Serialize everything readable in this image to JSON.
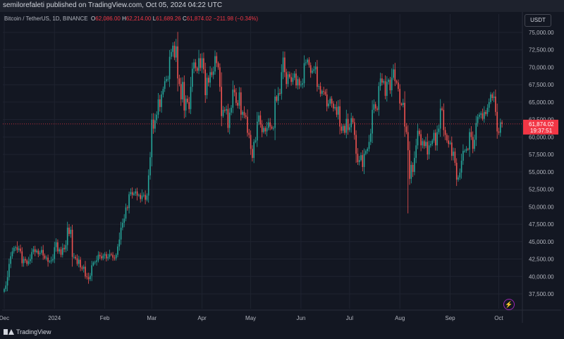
{
  "header": {
    "published_text": "semilorefaleti published on TradingView.com, Oct 05, 2024 04:22 UTC"
  },
  "symbol": {
    "name": "Bitcoin / TetherUS, 1D, BINANCE",
    "o_label": "O",
    "o_value": "62,086.00",
    "h_label": "H",
    "h_value": "62,214.00",
    "l_label": "L",
    "l_value": "61,689.26",
    "c_label": "C",
    "c_value": "61,874.02",
    "change": "−211.98 (−0.34%)"
  },
  "currency_button": "USDT",
  "brand": {
    "name": "TradingView"
  },
  "icons": {
    "lightning": "lightning-icon",
    "logo": "tradingview-logo-icon"
  },
  "colors": {
    "up": "#26a69a",
    "down": "#ef5350",
    "price_badge": "#f23645"
  },
  "price_badge": {
    "price": "61,874.02",
    "countdown": "19:37:51"
  },
  "chart_data": {
    "type": "candlestick",
    "ylim": [
      35800,
      76200
    ],
    "y_ticks": [
      37500,
      40000,
      42500,
      45000,
      47500,
      50000,
      52500,
      55000,
      57500,
      60000,
      62500,
      65000,
      67500,
      70000,
      72500,
      75000
    ],
    "y_tick_labels": [
      "37,500.00",
      "40,000.00",
      "42,500.00",
      "45,000.00",
      "47,500.00",
      "50,000.00",
      "52,500.00",
      "55,000.00",
      "57,500.00",
      "60,000.00",
      "62,500.00",
      "65,000.00",
      "67,500.00",
      "70,000.00",
      "72,500.00",
      "75,000.00"
    ],
    "x_ticks": [
      {
        "label": "Dec",
        "day": 0
      },
      {
        "label": "2024",
        "day": 31
      },
      {
        "label": "Feb",
        "day": 62
      },
      {
        "label": "Mar",
        "day": 91
      },
      {
        "label": "Apr",
        "day": 122
      },
      {
        "label": "May",
        "day": 152
      },
      {
        "label": "Jun",
        "day": 183
      },
      {
        "label": "Jul",
        "day": 213
      },
      {
        "label": "Aug",
        "day": 244
      },
      {
        "label": "Sep",
        "day": 275
      },
      {
        "label": "Oct",
        "day": 305
      }
    ],
    "last_close": 61874.02,
    "closes": [
      38200,
      38700,
      39900,
      41800,
      42900,
      43600,
      44100,
      44200,
      43800,
      44000,
      43600,
      41900,
      42500,
      42300,
      41800,
      42200,
      42500,
      43500,
      43900,
      43500,
      43700,
      43200,
      43400,
      43800,
      43000,
      42600,
      42700,
      42100,
      42200,
      42300,
      42500,
      44200,
      44900,
      43600,
      43900,
      43100,
      44100,
      43900,
      44500,
      47000,
      46100,
      46700,
      42800,
      42800,
      42600,
      41800,
      42400,
      41300,
      41100,
      41400,
      40000,
      39900,
      39600,
      40100,
      41600,
      42000,
      42100,
      42300,
      43100,
      42900,
      42600,
      43000,
      43200,
      42600,
      42800,
      43200,
      43100,
      42700,
      42600,
      43100,
      44300,
      45300,
      47000,
      47700,
      48300,
      49900,
      49800,
      51800,
      52100,
      51700,
      51900,
      52200,
      51600,
      51700,
      51100,
      51600,
      51700,
      51000,
      51600,
      54500,
      57100,
      62500,
      61200,
      62400,
      63200,
      65400,
      64300,
      66100,
      66900,
      68000,
      68300,
      68300,
      71500,
      72200,
      73100,
      71400,
      73000,
      68400,
      67600,
      65400,
      67900,
      63800,
      65500,
      65000,
      64000,
      67200,
      69800,
      70700,
      69900,
      69500,
      71300,
      69900,
      71300,
      69700,
      66000,
      68500,
      67800,
      69300,
      68900,
      69400,
      71600,
      70600,
      70000,
      67200,
      63000,
      63900,
      63800,
      64000,
      61300,
      63500,
      64200,
      66800,
      66400,
      64900,
      64500,
      66400,
      63200,
      63600,
      63100,
      62900,
      60600,
      60300,
      58300,
      57000,
      59300,
      59500,
      62200,
      63100,
      61800,
      60700,
      61300,
      60800,
      61300,
      62100,
      61500,
      61200,
      61300,
      65800,
      65200,
      66300,
      66200,
      69300,
      71400,
      69300,
      67600,
      69000,
      68600,
      67900,
      68500,
      69100,
      67400,
      68300,
      67400,
      67500,
      67700,
      70600,
      70700,
      71100,
      70300,
      69200,
      69500,
      69700,
      70100,
      67200,
      67300,
      66200,
      66600,
      66500,
      66100,
      64400,
      64800,
      65500,
      64800,
      64100,
      64300,
      63200,
      64400,
      61500,
      60900,
      61600,
      60600,
      62600,
      61000,
      61400,
      62700,
      62100,
      60300,
      57600,
      56400,
      56700,
      57400,
      55700,
      57600,
      58000,
      58300,
      59300,
      60500,
      63900,
      64700,
      64100,
      63900,
      67300,
      68400,
      67800,
      68000,
      65900,
      67900,
      68200,
      66700,
      68500,
      69700,
      68000,
      67800,
      66900,
      64800,
      64600,
      64900,
      61500,
      60700,
      58100,
      54000,
      56000,
      55000,
      57000,
      58800,
      60900,
      60400,
      58800,
      59400,
      58700,
      59300,
      57500,
      58800,
      59000,
      59500,
      60600,
      58800,
      60700,
      61200,
      64100,
      63900,
      61000,
      60300,
      59500,
      59000,
      59200,
      57300,
      57900,
      56300,
      53900,
      54200,
      54900,
      56600,
      58000,
      58000,
      58300,
      58200,
      60700,
      60000,
      58300,
      59600,
      62000,
      62900,
      63200,
      63400,
      62600,
      63600,
      63300,
      64200,
      65000,
      66100,
      65600,
      65800,
      63600,
      60800,
      60600,
      62100,
      61874
    ]
  }
}
